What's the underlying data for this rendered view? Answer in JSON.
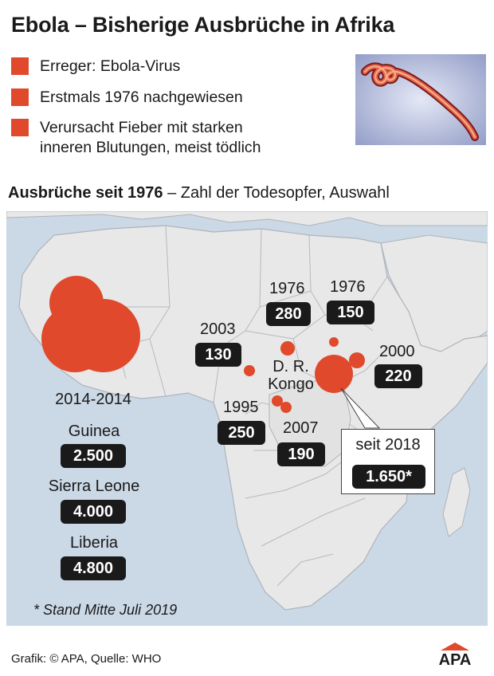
{
  "title": "Ebola – Bisherige Ausbrüche in Afrika",
  "facts": [
    "Erreger: Ebola-Virus",
    "Erstmals 1976 nachgewiesen",
    "Verursacht Fieber mit starken\ninneren Blutungen, meist tödlich"
  ],
  "subtitle": {
    "bold": "Ausbrüche seit 1976",
    "rest": " – Zahl der Todesopfer, Auswahl"
  },
  "map": {
    "country_label_line1": "D. R.",
    "country_label_line2": "Kongo",
    "outbreaks": [
      {
        "year": "1976",
        "deaths": "280"
      },
      {
        "year": "1976",
        "deaths": "150"
      },
      {
        "year": "2003",
        "deaths": "130"
      },
      {
        "year": "2000",
        "deaths": "220"
      },
      {
        "year": "1995",
        "deaths": "250"
      },
      {
        "year": "2007",
        "deaths": "190"
      },
      {
        "year": "seit 2018",
        "deaths": "1.650*"
      }
    ],
    "west_africa": {
      "period": "2014-2014",
      "countries": [
        {
          "name": "Guinea",
          "deaths": "2.500"
        },
        {
          "name": "Sierra Leone",
          "deaths": "4.000"
        },
        {
          "name": "Liberia",
          "deaths": "4.800"
        }
      ]
    }
  },
  "footnote": "* Stand Mitte Juli 2019",
  "credit": "Grafik: © APA, Quelle: WHO",
  "logo_text": "APA",
  "colors": {
    "accent": "#e0492b",
    "sea": "#cbd8e6",
    "land": "#e8e8e8",
    "badge": "#1a1a1a"
  }
}
